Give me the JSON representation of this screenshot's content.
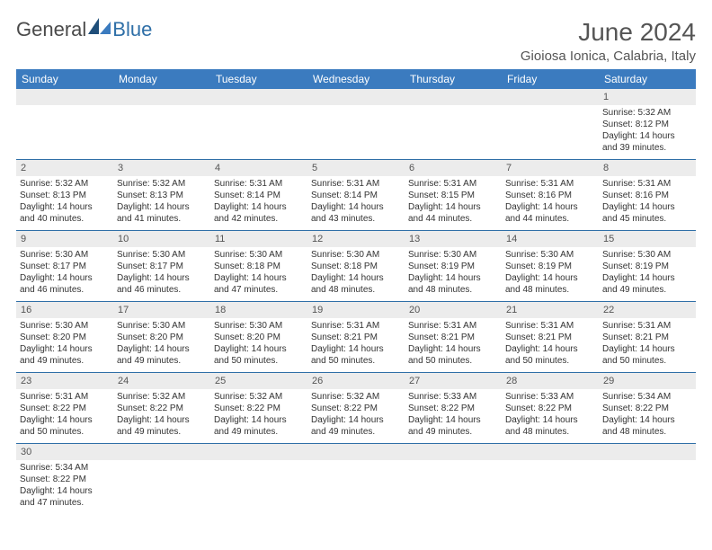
{
  "brand": {
    "part1": "General",
    "part2": "Blue"
  },
  "title": "June 2024",
  "location": "Gioiosa Ionica, Calabria, Italy",
  "colors": {
    "header_bg": "#3b7bbf",
    "header_text": "#ffffff",
    "daynum_bg": "#ececec",
    "border": "#2f6fa7",
    "text": "#333333",
    "title_text": "#555555"
  },
  "weekdays": [
    "Sunday",
    "Monday",
    "Tuesday",
    "Wednesday",
    "Thursday",
    "Friday",
    "Saturday"
  ],
  "weeks": [
    [
      null,
      null,
      null,
      null,
      null,
      null,
      {
        "n": "1",
        "sr": "5:32 AM",
        "ss": "8:12 PM",
        "dl": "14 hours and 39 minutes."
      }
    ],
    [
      {
        "n": "2",
        "sr": "5:32 AM",
        "ss": "8:13 PM",
        "dl": "14 hours and 40 minutes."
      },
      {
        "n": "3",
        "sr": "5:32 AM",
        "ss": "8:13 PM",
        "dl": "14 hours and 41 minutes."
      },
      {
        "n": "4",
        "sr": "5:31 AM",
        "ss": "8:14 PM",
        "dl": "14 hours and 42 minutes."
      },
      {
        "n": "5",
        "sr": "5:31 AM",
        "ss": "8:14 PM",
        "dl": "14 hours and 43 minutes."
      },
      {
        "n": "6",
        "sr": "5:31 AM",
        "ss": "8:15 PM",
        "dl": "14 hours and 44 minutes."
      },
      {
        "n": "7",
        "sr": "5:31 AM",
        "ss": "8:16 PM",
        "dl": "14 hours and 44 minutes."
      },
      {
        "n": "8",
        "sr": "5:31 AM",
        "ss": "8:16 PM",
        "dl": "14 hours and 45 minutes."
      }
    ],
    [
      {
        "n": "9",
        "sr": "5:30 AM",
        "ss": "8:17 PM",
        "dl": "14 hours and 46 minutes."
      },
      {
        "n": "10",
        "sr": "5:30 AM",
        "ss": "8:17 PM",
        "dl": "14 hours and 46 minutes."
      },
      {
        "n": "11",
        "sr": "5:30 AM",
        "ss": "8:18 PM",
        "dl": "14 hours and 47 minutes."
      },
      {
        "n": "12",
        "sr": "5:30 AM",
        "ss": "8:18 PM",
        "dl": "14 hours and 48 minutes."
      },
      {
        "n": "13",
        "sr": "5:30 AM",
        "ss": "8:19 PM",
        "dl": "14 hours and 48 minutes."
      },
      {
        "n": "14",
        "sr": "5:30 AM",
        "ss": "8:19 PM",
        "dl": "14 hours and 48 minutes."
      },
      {
        "n": "15",
        "sr": "5:30 AM",
        "ss": "8:19 PM",
        "dl": "14 hours and 49 minutes."
      }
    ],
    [
      {
        "n": "16",
        "sr": "5:30 AM",
        "ss": "8:20 PM",
        "dl": "14 hours and 49 minutes."
      },
      {
        "n": "17",
        "sr": "5:30 AM",
        "ss": "8:20 PM",
        "dl": "14 hours and 49 minutes."
      },
      {
        "n": "18",
        "sr": "5:30 AM",
        "ss": "8:20 PM",
        "dl": "14 hours and 50 minutes."
      },
      {
        "n": "19",
        "sr": "5:31 AM",
        "ss": "8:21 PM",
        "dl": "14 hours and 50 minutes."
      },
      {
        "n": "20",
        "sr": "5:31 AM",
        "ss": "8:21 PM",
        "dl": "14 hours and 50 minutes."
      },
      {
        "n": "21",
        "sr": "5:31 AM",
        "ss": "8:21 PM",
        "dl": "14 hours and 50 minutes."
      },
      {
        "n": "22",
        "sr": "5:31 AM",
        "ss": "8:21 PM",
        "dl": "14 hours and 50 minutes."
      }
    ],
    [
      {
        "n": "23",
        "sr": "5:31 AM",
        "ss": "8:22 PM",
        "dl": "14 hours and 50 minutes."
      },
      {
        "n": "24",
        "sr": "5:32 AM",
        "ss": "8:22 PM",
        "dl": "14 hours and 49 minutes."
      },
      {
        "n": "25",
        "sr": "5:32 AM",
        "ss": "8:22 PM",
        "dl": "14 hours and 49 minutes."
      },
      {
        "n": "26",
        "sr": "5:32 AM",
        "ss": "8:22 PM",
        "dl": "14 hours and 49 minutes."
      },
      {
        "n": "27",
        "sr": "5:33 AM",
        "ss": "8:22 PM",
        "dl": "14 hours and 49 minutes."
      },
      {
        "n": "28",
        "sr": "5:33 AM",
        "ss": "8:22 PM",
        "dl": "14 hours and 48 minutes."
      },
      {
        "n": "29",
        "sr": "5:34 AM",
        "ss": "8:22 PM",
        "dl": "14 hours and 48 minutes."
      }
    ],
    [
      {
        "n": "30",
        "sr": "5:34 AM",
        "ss": "8:22 PM",
        "dl": "14 hours and 47 minutes."
      },
      null,
      null,
      null,
      null,
      null,
      null
    ]
  ],
  "labels": {
    "sunrise": "Sunrise:",
    "sunset": "Sunset:",
    "daylight": "Daylight:"
  }
}
